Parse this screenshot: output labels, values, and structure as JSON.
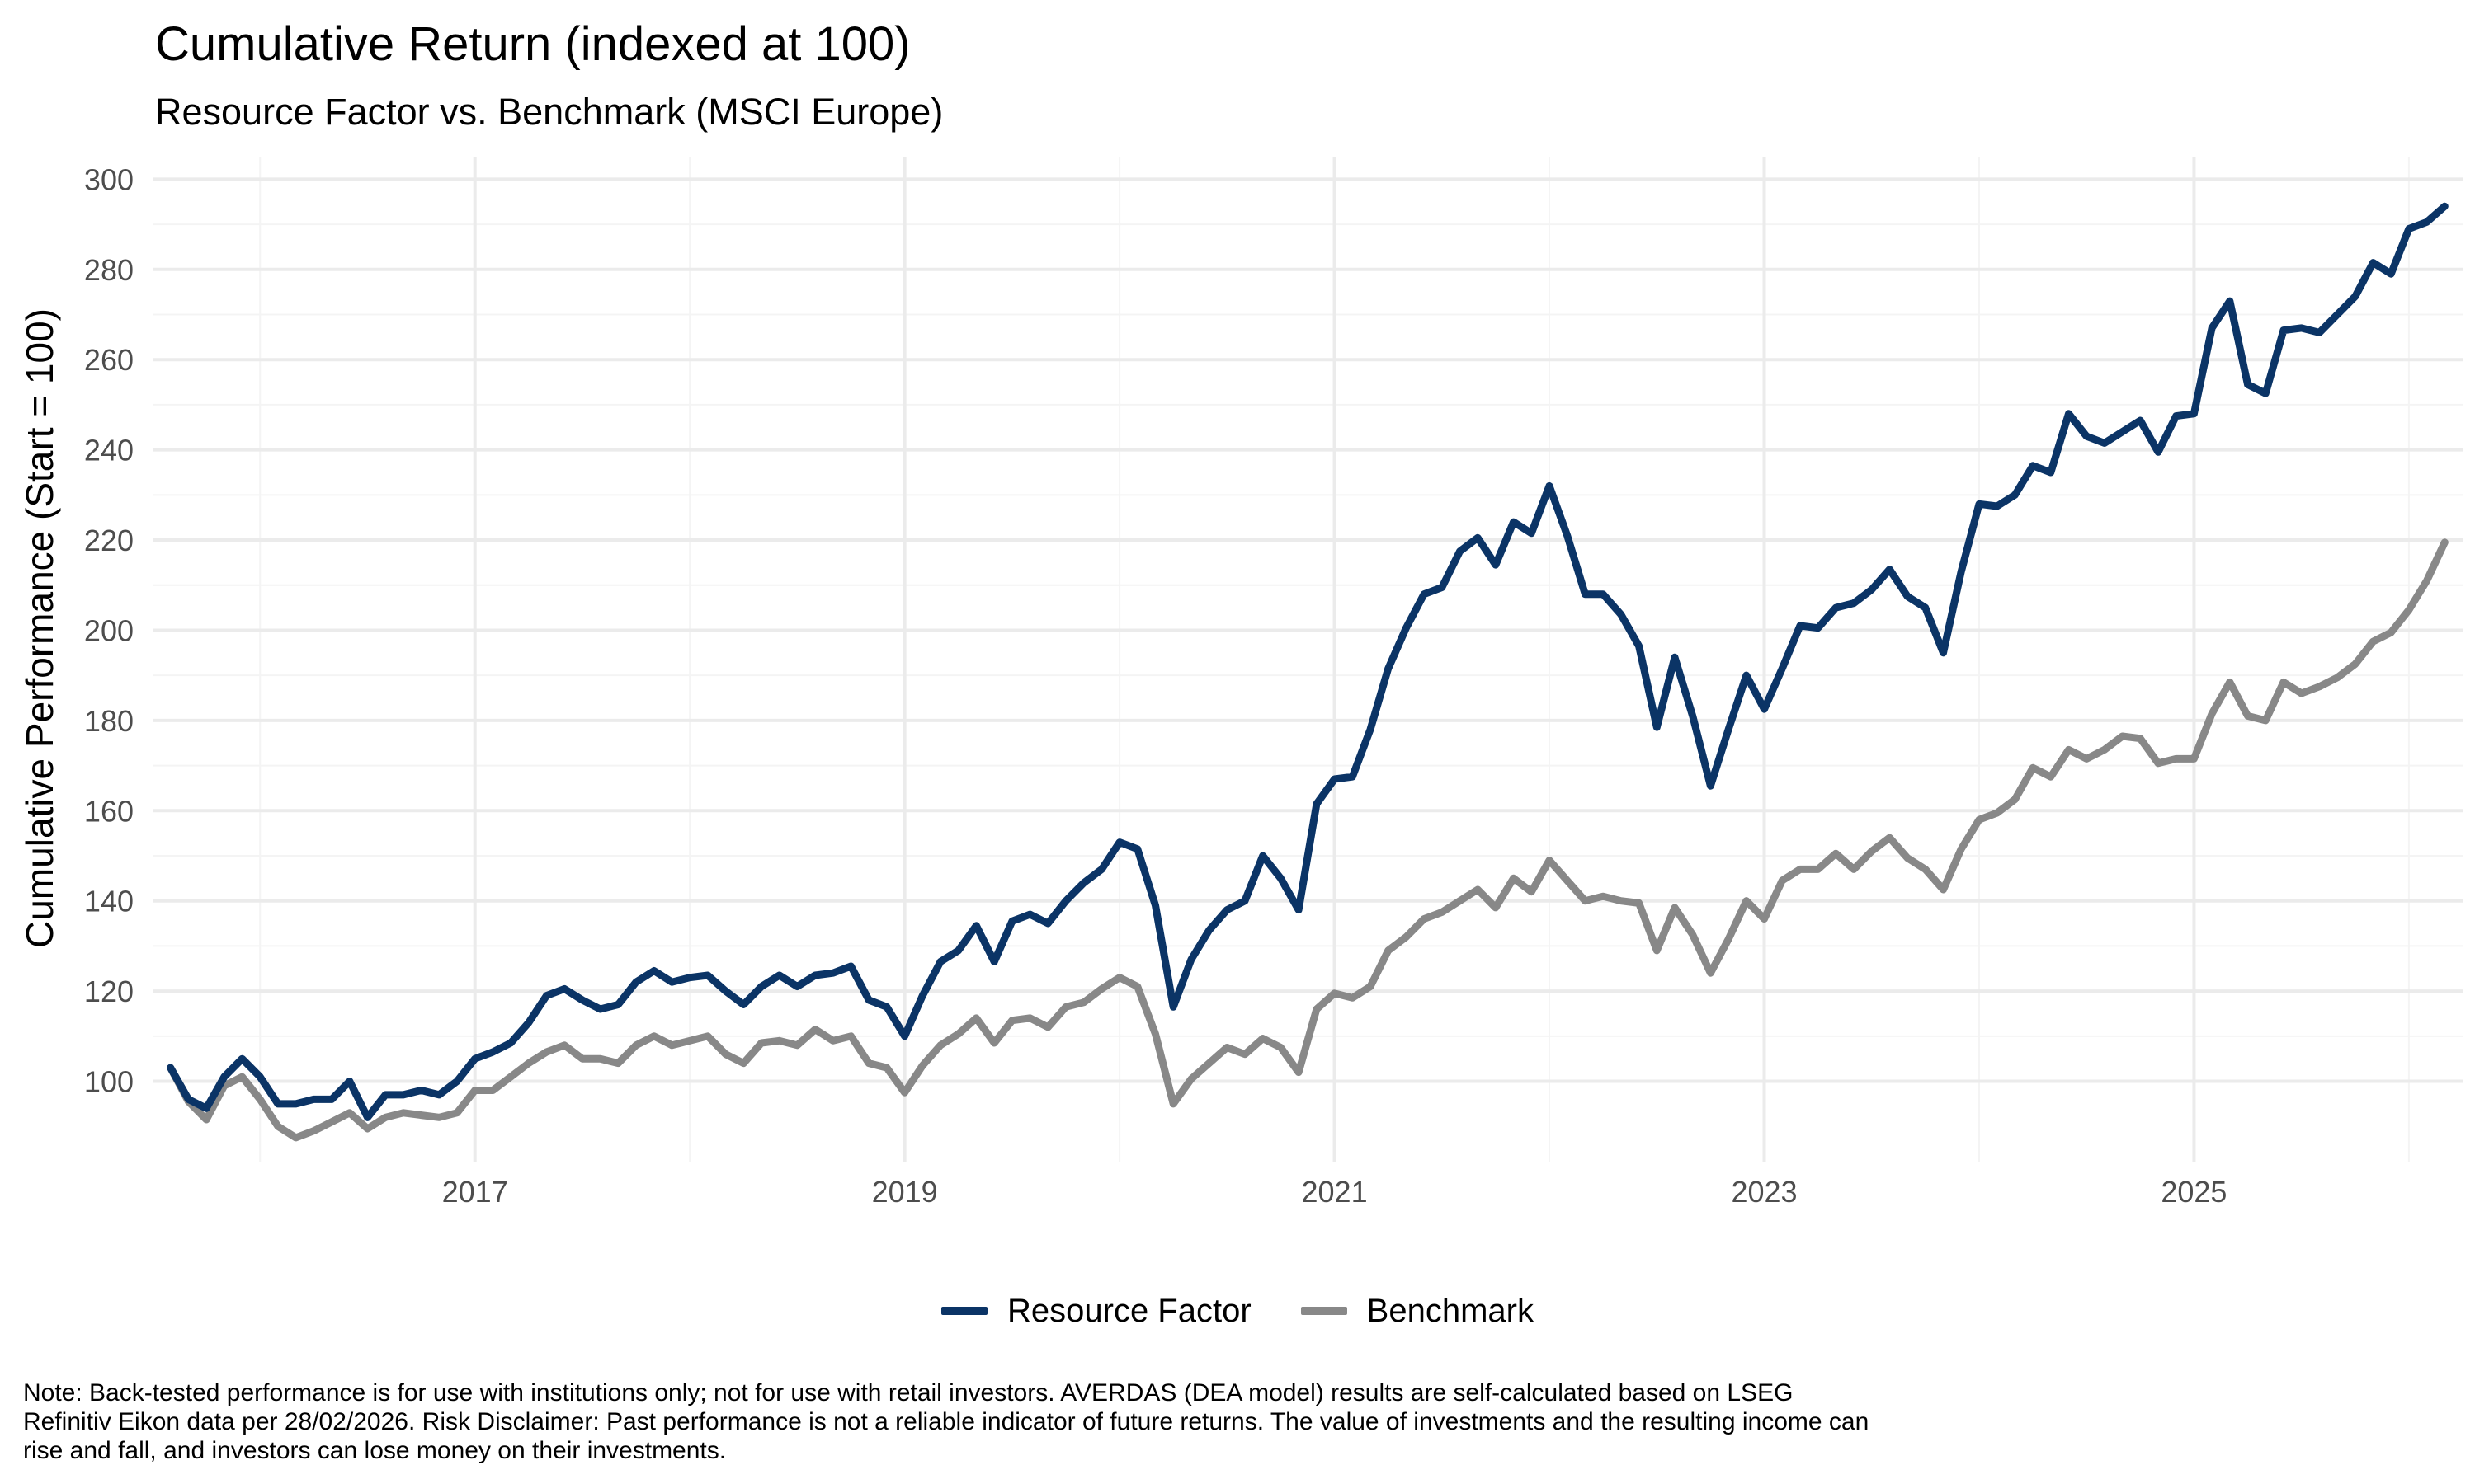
{
  "chart_data": {
    "type": "line",
    "title": "Cumulative Return (indexed at 100)",
    "subtitle": "Resource Factor vs. Benchmark (MSCI Europe)",
    "ylabel": "Cumulative Performance (Start = 100)",
    "xlabel": "",
    "x_ticks": [
      "2017",
      "2019",
      "2021",
      "2023",
      "2025"
    ],
    "y_ticks": [
      100,
      120,
      140,
      160,
      180,
      200,
      220,
      240,
      260,
      280,
      300
    ],
    "ylim": [
      82,
      305
    ],
    "xlim": [
      "2015-07",
      "2026-04"
    ],
    "grid": true,
    "legend_position": "bottom",
    "x": [
      "2015-08",
      "2015-09",
      "2015-10",
      "2015-11",
      "2015-12",
      "2016-01",
      "2016-02",
      "2016-03",
      "2016-04",
      "2016-05",
      "2016-06",
      "2016-07",
      "2016-08",
      "2016-09",
      "2016-10",
      "2016-11",
      "2016-12",
      "2017-01",
      "2017-02",
      "2017-03",
      "2017-04",
      "2017-05",
      "2017-06",
      "2017-07",
      "2017-08",
      "2017-09",
      "2017-10",
      "2017-11",
      "2017-12",
      "2018-01",
      "2018-02",
      "2018-03",
      "2018-04",
      "2018-05",
      "2018-06",
      "2018-07",
      "2018-08",
      "2018-09",
      "2018-10",
      "2018-11",
      "2018-12",
      "2019-01",
      "2019-02",
      "2019-03",
      "2019-04",
      "2019-05",
      "2019-06",
      "2019-07",
      "2019-08",
      "2019-09",
      "2019-10",
      "2019-11",
      "2019-12",
      "2020-01",
      "2020-02",
      "2020-03",
      "2020-04",
      "2020-05",
      "2020-06",
      "2020-07",
      "2020-08",
      "2020-09",
      "2020-10",
      "2020-11",
      "2020-12",
      "2021-01",
      "2021-02",
      "2021-03",
      "2021-04",
      "2021-05",
      "2021-06",
      "2021-07",
      "2021-08",
      "2021-09",
      "2021-10",
      "2021-11",
      "2021-12",
      "2022-01",
      "2022-02",
      "2022-03",
      "2022-04",
      "2022-05",
      "2022-06",
      "2022-07",
      "2022-08",
      "2022-09",
      "2022-10",
      "2022-11",
      "2022-12",
      "2023-01",
      "2023-02",
      "2023-03",
      "2023-04",
      "2023-05",
      "2023-06",
      "2023-07",
      "2023-08",
      "2023-09",
      "2023-10",
      "2023-11",
      "2023-12",
      "2024-01",
      "2024-02",
      "2024-03",
      "2024-04",
      "2024-05",
      "2024-06",
      "2024-07",
      "2024-08",
      "2024-09",
      "2024-10",
      "2024-11",
      "2024-12",
      "2025-01",
      "2025-02",
      "2025-03",
      "2025-04",
      "2025-05",
      "2025-06",
      "2025-07",
      "2025-08",
      "2025-09",
      "2025-10",
      "2025-11",
      "2025-12",
      "2026-01",
      "2026-02",
      "2026-03"
    ],
    "series": [
      {
        "name": "Resource Factor",
        "color": "#0b3466",
        "values": [
          103,
          96,
          94,
          101,
          105,
          101,
          95,
          95,
          96,
          96,
          100,
          92,
          97,
          97,
          98,
          97,
          100,
          105,
          106.5,
          108.5,
          113,
          119,
          120.5,
          118,
          116,
          117,
          122,
          124.5,
          122,
          123,
          123.5,
          120,
          117,
          121,
          123.5,
          121,
          123.5,
          124,
          125.5,
          118,
          116.5,
          110,
          119,
          126.5,
          129,
          134.5,
          126.5,
          135.5,
          137,
          135,
          140,
          144,
          147,
          153,
          151.5,
          139,
          116.5,
          127,
          133.5,
          138,
          140,
          150,
          145,
          138,
          161.5,
          167,
          167.5,
          178,
          191.5,
          200.5,
          208,
          209.5,
          217.5,
          220.5,
          214.5,
          224,
          221.5,
          232,
          221,
          208,
          208,
          203.5,
          196.5,
          178.5,
          194,
          181,
          165.5,
          178,
          190,
          182.5,
          191.5,
          201,
          200.5,
          205,
          206,
          209,
          213.5,
          207.5,
          205,
          195,
          213,
          228,
          227.5,
          230,
          236.5,
          235,
          248,
          243,
          241.5,
          244,
          246.5,
          239.5,
          247.5,
          248,
          267,
          273,
          254.5,
          252.5,
          266.5,
          267,
          266,
          270,
          274,
          281.5,
          279,
          289,
          290.5,
          294
        ]
      },
      {
        "name": "Benchmark",
        "color": "#888888",
        "values": [
          103,
          95.5,
          91.5,
          99,
          101,
          96,
          90,
          87.5,
          89,
          91,
          93,
          89.5,
          92,
          93,
          92.5,
          92,
          93,
          98,
          98,
          101,
          104,
          106.5,
          108,
          105,
          105,
          104,
          108,
          110,
          108,
          109,
          110,
          106,
          104,
          108.5,
          109,
          108,
          111.5,
          109,
          110,
          104,
          103,
          97.5,
          103.5,
          108,
          110.5,
          114,
          108.5,
          113.5,
          114,
          112,
          116.5,
          117.5,
          120.5,
          123,
          121,
          110.5,
          95,
          100.5,
          104,
          107.5,
          106,
          109.5,
          107.5,
          102,
          116,
          119.5,
          118.5,
          121,
          129,
          132,
          136,
          137.5,
          140,
          142.5,
          138.5,
          145,
          142,
          149,
          144.5,
          140,
          141,
          140,
          139.5,
          129,
          138.5,
          132.5,
          124,
          131.5,
          140,
          136,
          144.5,
          147,
          147,
          150.5,
          147,
          151,
          154,
          149.5,
          147,
          142.5,
          151.5,
          158,
          159.5,
          162.5,
          169.5,
          167.5,
          173.5,
          171.5,
          173.5,
          176.5,
          176,
          170.5,
          171.5,
          171.5,
          181.5,
          188.5,
          181,
          180,
          188.5,
          186,
          187.5,
          189.5,
          192.5,
          197.5,
          199.5,
          204.5,
          211,
          219.5
        ]
      }
    ],
    "note": "Note: Back-tested performance is for use with institutions only; not for use with retail investors. AVERDAS (DEA model) results are self-calculated based on LSEG Refinitiv Eikon data per 28/02/2026. Risk Disclaimer: Past performance is not a reliable indicator of future returns. The value of investments and the resulting income can rise and fall, and investors can lose money on their investments."
  }
}
